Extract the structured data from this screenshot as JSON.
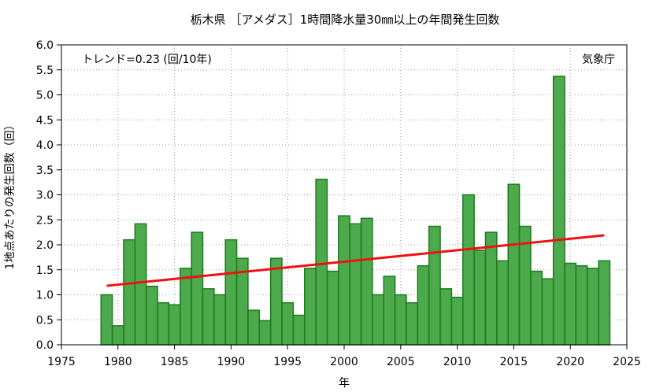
{
  "chart_data": {
    "type": "bar",
    "title": "栃木県 ［アメダス］1時間降水量30㎜以上の年間発生回数",
    "xlabel": "年",
    "ylabel": "1地点あたりの発生回数（回）",
    "trend_label": "トレンド=0.23 (回/10年)",
    "source_label": "気象庁",
    "xlim": [
      1975,
      2025
    ],
    "ylim": [
      0.0,
      6.0
    ],
    "x_ticks": [
      "1975",
      "1980",
      "1985",
      "1990",
      "1995",
      "2000",
      "2005",
      "2010",
      "2015",
      "2020",
      "2025"
    ],
    "y_ticks": [
      "0.0",
      "0.5",
      "1.0",
      "1.5",
      "2.0",
      "2.5",
      "3.0",
      "3.5",
      "4.0",
      "4.5",
      "5.0",
      "5.5",
      "6.0"
    ],
    "grid": true,
    "colors": {
      "bar_fill": "#4caa4c",
      "bar_edge": "#1e7a1e",
      "trend": "#ee1111"
    },
    "series": [
      {
        "x": [
          1979,
          1980,
          1981,
          1982,
          1983,
          1984,
          1985,
          1986,
          1987,
          1988,
          1989,
          1990,
          1991,
          1992,
          1993,
          1994,
          1995,
          1996,
          1997,
          1998,
          1999,
          2000,
          2001,
          2002,
          2003,
          2004,
          2005,
          2006,
          2007,
          2008,
          2009,
          2010,
          2011,
          2012,
          2013,
          2014,
          2015,
          2016,
          2017,
          2018,
          2019,
          2020,
          2021,
          2022,
          2023
        ],
        "values": [
          1.0,
          0.38,
          2.1,
          2.42,
          1.17,
          0.84,
          0.8,
          1.53,
          2.25,
          1.12,
          1.0,
          2.1,
          1.73,
          0.69,
          0.48,
          1.73,
          0.84,
          0.59,
          1.53,
          3.31,
          1.47,
          2.58,
          2.42,
          2.53,
          1.0,
          1.37,
          1.0,
          0.84,
          1.58,
          2.37,
          1.12,
          0.95,
          3.0,
          1.89,
          2.25,
          1.68,
          3.21,
          2.37,
          1.47,
          1.32,
          5.37,
          1.63,
          1.58,
          1.53,
          1.68
        ]
      }
    ],
    "trend_line": {
      "x": [
        1979,
        2023
      ],
      "y": [
        1.18,
        2.19
      ]
    }
  }
}
